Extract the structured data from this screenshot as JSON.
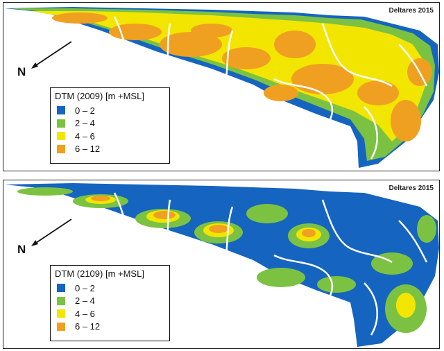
{
  "panels": [
    {
      "credit": "Deltares 2015",
      "north": "N",
      "legend": {
        "title": "DTM (2009) [m +MSL]",
        "items": [
          {
            "label": "0 – 2",
            "color": "#1565c0"
          },
          {
            "label": "2 – 4",
            "color": "#7cc242"
          },
          {
            "label": "4 – 6",
            "color": "#f2e600"
          },
          {
            "label": "6 – 12",
            "color": "#f0a020"
          }
        ]
      }
    },
    {
      "credit": "Deltares 2015",
      "north": "N",
      "legend": {
        "title": "DTM (2109) [m +MSL]",
        "items": [
          {
            "label": "0 – 2",
            "color": "#1565c0"
          },
          {
            "label": "2 – 4",
            "color": "#7cc242"
          },
          {
            "label": "4 – 6",
            "color": "#f2e600"
          },
          {
            "label": "6 – 12",
            "color": "#f0a020"
          }
        ]
      }
    }
  ]
}
